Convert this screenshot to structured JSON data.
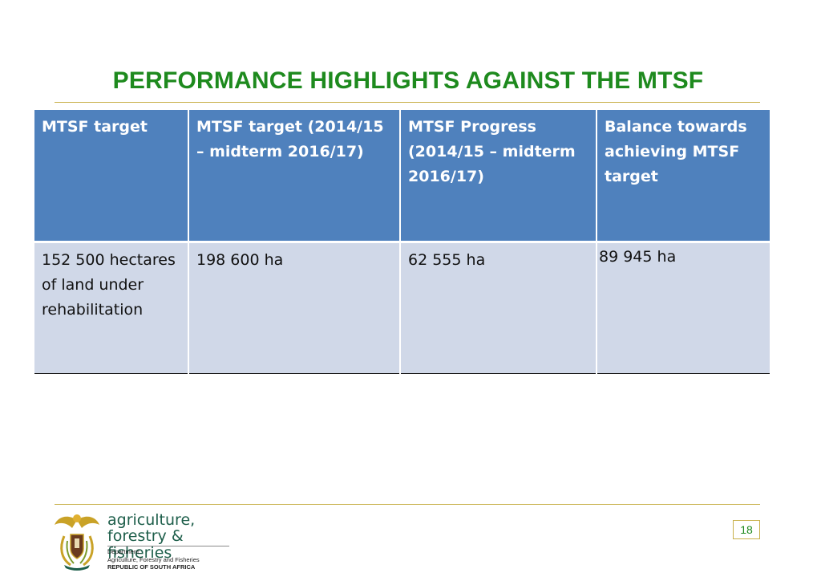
{
  "slide": {
    "title": "PERFORMANCE HIGHLIGHTS AGAINST THE MTSF",
    "page_number": "18"
  },
  "table": {
    "headers": [
      "MTSF target",
      " MTSF target (2014/15 – midterm 2016/17)",
      "MTSF Progress (2014/15 –  midterm 2016/17)",
      "Balance towards achieving MTSF target"
    ],
    "row": [
      "152 500 hectares of land under rehabilitation",
      "198 600 ha",
      "62 555 ha",
      "89 945 ha"
    ]
  },
  "footer": {
    "brand_line1": "agriculture,",
    "brand_line2": "forestry & fisheries",
    "dept_label": "Department:",
    "dept_name": "Agriculture, Forestry and Fisheries",
    "country": "REPUBLIC OF SOUTH AFRICA"
  },
  "colors": {
    "title_green": "#1e8a1e",
    "header_blue": "#4f81bd",
    "cell_light": "#d0d8e8",
    "rule_gold": "#c8b04a",
    "brand_green": "#1d5e4a"
  },
  "icons": {
    "crest": "coat-of-arms-icon"
  }
}
